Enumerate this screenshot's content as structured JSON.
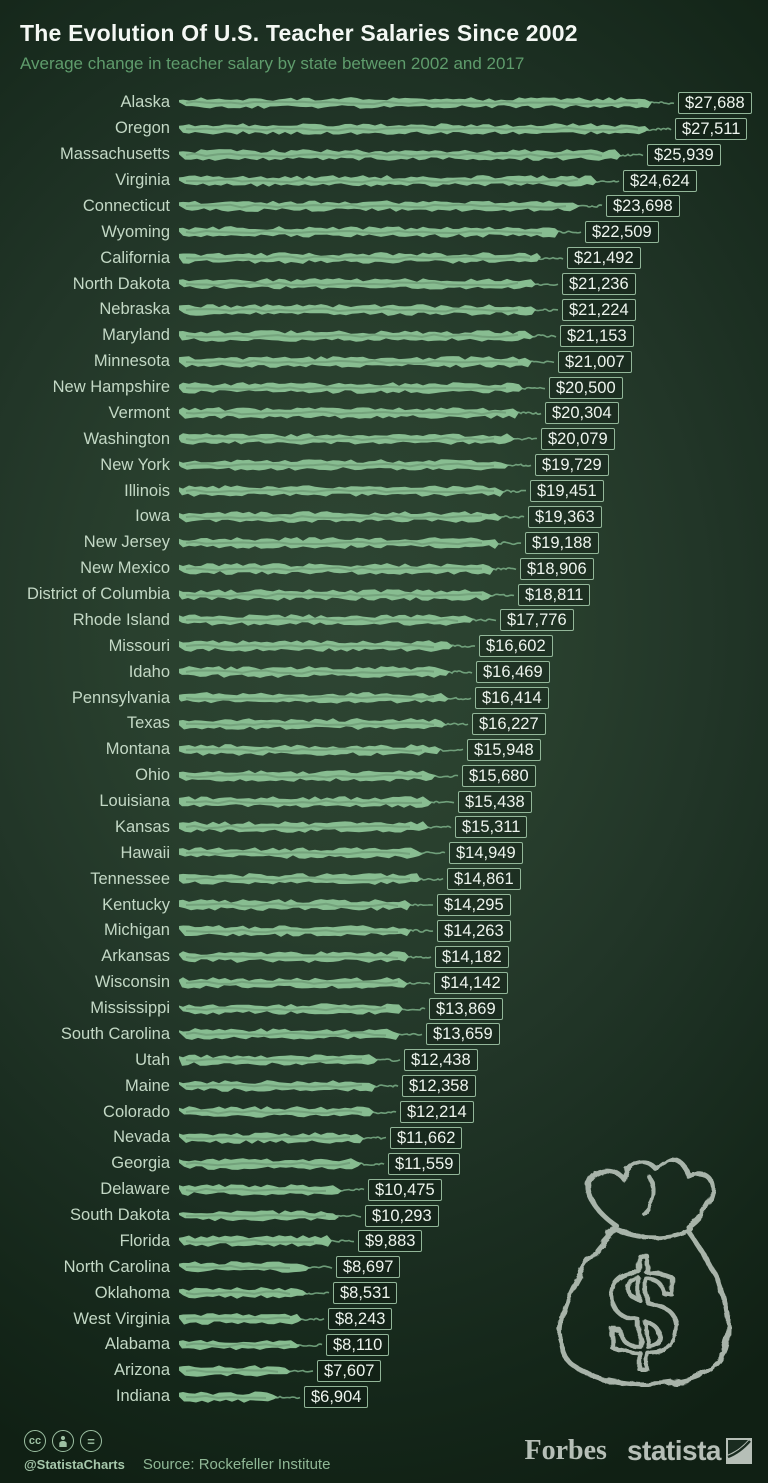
{
  "header": {
    "title": "The Evolution Of U.S. Teacher Salaries Since 2002",
    "subtitle": "Average change in teacher salary by state between 2002 and 2017"
  },
  "chart_data": {
    "type": "bar",
    "orientation": "horizontal",
    "title": "The Evolution Of U.S. Teacher Salaries Since 2002",
    "subtitle": "Average change in teacher salary by state between 2002 and 2017",
    "xlabel": "",
    "ylabel": "",
    "unit": "USD",
    "xlim": [
      0,
      27688
    ],
    "categories": [
      "Alaska",
      "Oregon",
      "Massachusetts",
      "Virginia",
      "Connecticut",
      "Wyoming",
      "California",
      "North Dakota",
      "Nebraska",
      "Maryland",
      "Minnesota",
      "New Hampshire",
      "Vermont",
      "Washington",
      "New York",
      "Illinois",
      "Iowa",
      "New Jersey",
      "New Mexico",
      "District of Columbia",
      "Rhode Island",
      "Missouri",
      "Idaho",
      "Pennsylvania",
      "Texas",
      "Montana",
      "Ohio",
      "Louisiana",
      "Kansas",
      "Hawaii",
      "Tennessee",
      "Kentucky",
      "Michigan",
      "Arkansas",
      "Wisconsin",
      "Mississippi",
      "South Carolina",
      "Utah",
      "Maine",
      "Colorado",
      "Nevada",
      "Georgia",
      "Delaware",
      "South Dakota",
      "Florida",
      "North Carolina",
      "Oklahoma",
      "West Virginia",
      "Alabama",
      "Arizona",
      "Indiana"
    ],
    "values": [
      27688,
      27511,
      25939,
      24624,
      23698,
      22509,
      21492,
      21236,
      21224,
      21153,
      21007,
      20500,
      20304,
      20079,
      19729,
      19451,
      19363,
      19188,
      18906,
      18811,
      17776,
      16602,
      16469,
      16414,
      16227,
      15948,
      15680,
      15438,
      15311,
      14949,
      14861,
      14295,
      14263,
      14182,
      14142,
      13869,
      13659,
      12438,
      12358,
      12214,
      11662,
      11559,
      10475,
      10293,
      9883,
      8697,
      8531,
      8243,
      8110,
      7607,
      6904
    ],
    "value_labels": [
      "$27,688",
      "$27,511",
      "$25,939",
      "$24,624",
      "$23,698",
      "$22,509",
      "$21,492",
      "$21,236",
      "$21,224",
      "$21,153",
      "$21,007",
      "$20,500",
      "$20,304",
      "$20,079",
      "$19,729",
      "$19,451",
      "$19,363",
      "$19,188",
      "$18,906",
      "$18,811",
      "$17,776",
      "$16,602",
      "$16,469",
      "$16,414",
      "$16,227",
      "$15,948",
      "$15,680",
      "$15,438",
      "$15,311",
      "$14,949",
      "$14,861",
      "$14,295",
      "$14,263",
      "$14,182",
      "$14,142",
      "$13,869",
      "$13,659",
      "$12,438",
      "$12,358",
      "$12,214",
      "$11,662",
      "$11,559",
      "$10,475",
      "$10,293",
      "$9,883",
      "$8,697",
      "$8,531",
      "$8,243",
      "$8,110",
      "$7,607",
      "$6,904"
    ]
  },
  "illustration": {
    "name": "money-bag-doodle",
    "symbol": "$"
  },
  "footer": {
    "license_icons": [
      "cc",
      "attribution",
      "nd"
    ],
    "cc_label": "cc",
    "eq_label": "=",
    "handle": "@StatistaCharts",
    "source": "Source: Rockefeller Institute",
    "brand_forbes": "Forbes",
    "brand_statista": "statista"
  },
  "colors": {
    "background_center": "#2e4533",
    "background_edge": "#102014",
    "bar": "#8dc497",
    "bar_tail": "#82b88e",
    "title": "#f4f8f4",
    "subtitle": "#5f9c6c",
    "state_label": "#c3d8c5",
    "value_text": "#eef5ee",
    "value_box_border": "#a8d0af",
    "footer_text": "#8fb795",
    "brand_text": "#b6bfb7",
    "doodle": "#b5c0b6"
  }
}
